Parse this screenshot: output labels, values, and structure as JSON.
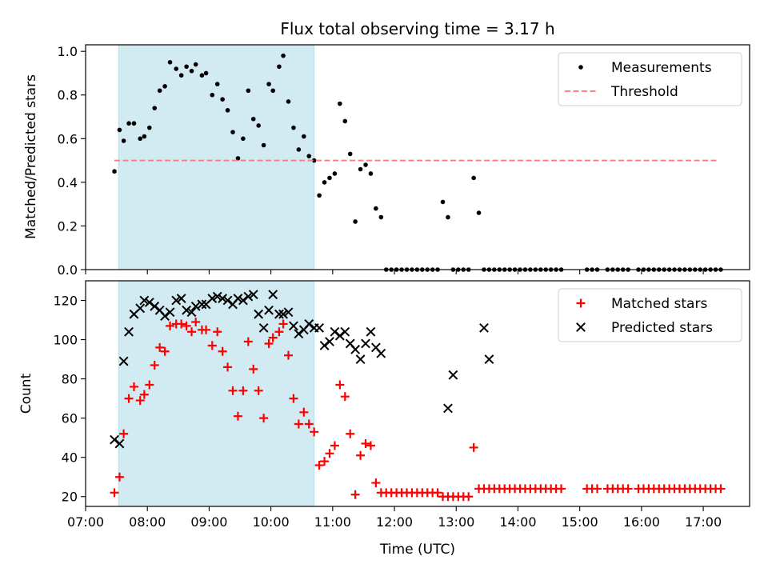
{
  "chart_data": [
    {
      "type": "scatter",
      "title": "Flux total observing time = 3.17 h",
      "xlabel": "",
      "ylabel": "Matched/Predicted stars",
      "xlim": [
        "07:00",
        "17:45"
      ],
      "ylim": [
        0,
        1.03
      ],
      "yticks": [
        0.0,
        0.2,
        0.4,
        0.6,
        0.8,
        1.0
      ],
      "ytick_labels": [
        "0.0",
        "0.2",
        "0.4",
        "0.6",
        "0.8",
        "1.0"
      ],
      "shaded_region": {
        "x_start": "07:32",
        "x_end": "10:42",
        "color": "#add8e6"
      },
      "legend": {
        "position": "top-right",
        "entries": [
          "Measurements",
          "Threshold"
        ]
      },
      "series": [
        {
          "name": "Measurements",
          "marker": "dot",
          "color": "#000000",
          "x": [
            "07:28",
            "07:33",
            "07:37",
            "07:42",
            "07:47",
            "07:53",
            "07:57",
            "08:02",
            "08:07",
            "08:12",
            "08:17",
            "08:22",
            "08:28",
            "08:33",
            "08:38",
            "08:43",
            "08:47",
            "08:53",
            "08:57",
            "09:03",
            "09:08",
            "09:13",
            "09:18",
            "09:23",
            "09:28",
            "09:33",
            "09:38",
            "09:43",
            "09:48",
            "09:53",
            "09:58",
            "10:02",
            "10:08",
            "10:12",
            "10:17",
            "10:22",
            "10:27",
            "10:32",
            "10:37",
            "10:42",
            "10:47",
            "10:52",
            "10:57",
            "11:02",
            "11:07",
            "11:12",
            "11:17",
            "11:22",
            "11:27",
            "11:32",
            "11:37",
            "11:42",
            "11:47",
            "11:52",
            "11:57",
            "12:02",
            "12:07",
            "12:12",
            "12:17",
            "12:22",
            "12:27",
            "12:32",
            "12:37",
            "12:42",
            "12:47",
            "12:52",
            "12:57",
            "13:02",
            "13:07",
            "13:12",
            "13:17",
            "13:22",
            "13:27",
            "13:32",
            "13:37",
            "13:42",
            "13:47",
            "13:52",
            "13:57",
            "14:02",
            "14:07",
            "14:12",
            "14:17",
            "14:22",
            "14:27",
            "14:32",
            "14:37",
            "14:42",
            "15:07",
            "15:12",
            "15:17",
            "15:27",
            "15:32",
            "15:37",
            "15:42",
            "15:47",
            "15:57",
            "16:02",
            "16:07",
            "16:12",
            "16:17",
            "16:22",
            "16:27",
            "16:32",
            "16:37",
            "16:42",
            "16:47",
            "16:52",
            "16:57",
            "17:02",
            "17:07",
            "17:12",
            "17:17"
          ],
          "y": [
            0.45,
            0.64,
            0.59,
            0.67,
            0.67,
            0.6,
            0.61,
            0.65,
            0.74,
            0.82,
            0.84,
            0.95,
            0.92,
            0.89,
            0.93,
            0.91,
            0.94,
            0.89,
            0.9,
            0.8,
            0.85,
            0.78,
            0.73,
            0.63,
            0.51,
            0.6,
            0.82,
            0.69,
            0.66,
            0.57,
            0.85,
            0.82,
            0.93,
            0.98,
            0.77,
            0.65,
            0.55,
            0.61,
            0.52,
            0.5,
            0.34,
            0.4,
            0.42,
            0.44,
            0.76,
            0.68,
            0.53,
            0.22,
            0.46,
            0.48,
            0.44,
            0.28,
            0.24,
            0,
            0,
            0,
            0,
            0,
            0,
            0,
            0,
            0,
            0,
            0,
            0.31,
            0.24,
            0,
            0,
            0,
            0,
            0.42,
            0.26,
            0,
            0,
            0,
            0,
            0,
            0,
            0,
            0,
            0,
            0,
            0,
            0,
            0,
            0,
            0,
            0,
            0,
            0,
            0,
            0,
            0,
            0,
            0,
            0,
            0,
            0,
            0,
            0,
            0,
            0,
            0,
            0,
            0,
            0,
            0,
            0,
            0,
            0,
            0,
            0,
            0
          ]
        },
        {
          "name": "Threshold",
          "style": "dashed",
          "color": "#ff7f7f",
          "x": [
            "07:28",
            "17:15"
          ],
          "y": [
            0.5,
            0.5
          ]
        }
      ]
    },
    {
      "type": "scatter",
      "title": "",
      "xlabel": "Time (UTC)",
      "ylabel": "Count",
      "xlim": [
        "07:00",
        "17:45"
      ],
      "ylim": [
        15,
        130
      ],
      "yticks": [
        20,
        40,
        60,
        80,
        100,
        120
      ],
      "ytick_labels": [
        "20",
        "40",
        "60",
        "80",
        "100",
        "120"
      ],
      "xticks": [
        "07:00",
        "08:00",
        "09:00",
        "10:00",
        "11:00",
        "12:00",
        "13:00",
        "14:00",
        "15:00",
        "16:00",
        "17:00"
      ],
      "shaded_region": {
        "x_start": "07:32",
        "x_end": "10:42",
        "color": "#add8e6"
      },
      "legend": {
        "position": "top-right",
        "entries": [
          "Matched stars",
          "Predicted stars"
        ]
      },
      "series": [
        {
          "name": "Matched stars",
          "marker": "plus",
          "color": "#ff0000",
          "x": [
            "07:28",
            "07:33",
            "07:37",
            "07:42",
            "07:47",
            "07:53",
            "07:57",
            "08:02",
            "08:07",
            "08:12",
            "08:17",
            "08:22",
            "08:28",
            "08:33",
            "08:38",
            "08:43",
            "08:47",
            "08:53",
            "08:57",
            "09:03",
            "09:08",
            "09:13",
            "09:18",
            "09:23",
            "09:28",
            "09:33",
            "09:38",
            "09:43",
            "09:48",
            "09:53",
            "09:58",
            "10:02",
            "10:08",
            "10:12",
            "10:17",
            "10:22",
            "10:27",
            "10:32",
            "10:37",
            "10:42",
            "10:47",
            "10:52",
            "10:57",
            "11:02",
            "11:07",
            "11:12",
            "11:17",
            "11:22",
            "11:27",
            "11:32",
            "11:37",
            "11:42",
            "11:47",
            "11:52",
            "11:57",
            "12:02",
            "12:07",
            "12:12",
            "12:17",
            "12:22",
            "12:27",
            "12:32",
            "12:37",
            "12:42",
            "12:47",
            "12:52",
            "12:57",
            "13:02",
            "13:07",
            "13:12",
            "13:17",
            "13:22",
            "13:27",
            "13:32",
            "13:37",
            "13:42",
            "13:47",
            "13:52",
            "13:57",
            "14:02",
            "14:07",
            "14:12",
            "14:17",
            "14:22",
            "14:27",
            "14:32",
            "14:37",
            "14:42",
            "15:07",
            "15:12",
            "15:17",
            "15:27",
            "15:32",
            "15:37",
            "15:42",
            "15:47",
            "15:57",
            "16:02",
            "16:07",
            "16:12",
            "16:17",
            "16:22",
            "16:27",
            "16:32",
            "16:37",
            "16:42",
            "16:47",
            "16:52",
            "16:57",
            "17:02",
            "17:07",
            "17:12",
            "17:17"
          ],
          "y": [
            22,
            30,
            52,
            70,
            76,
            69,
            72,
            77,
            87,
            96,
            94,
            107,
            108,
            108,
            107,
            104,
            109,
            105,
            105,
            97,
            104,
            94,
            86,
            74,
            61,
            74,
            99,
            85,
            74,
            60,
            98,
            101,
            104,
            108,
            92,
            70,
            57,
            63,
            57,
            53,
            36,
            38,
            42,
            46,
            77,
            71,
            52,
            21,
            41,
            47,
            46,
            27,
            22,
            22,
            22,
            22,
            22,
            22,
            22,
            22,
            22,
            22,
            22,
            22,
            20,
            20,
            20,
            20,
            20,
            20,
            45,
            24,
            24,
            24,
            24,
            24,
            24,
            24,
            24,
            24,
            24,
            24,
            24,
            24,
            24,
            24,
            24,
            24,
            24,
            24,
            24,
            24,
            24,
            24,
            24,
            24,
            24,
            24,
            24,
            24,
            24,
            24,
            24,
            24,
            24,
            24,
            24,
            24,
            24,
            24,
            24,
            24,
            24
          ]
        },
        {
          "name": "Predicted stars",
          "marker": "x",
          "color": "#000000",
          "x": [
            "07:28",
            "07:33",
            "07:37",
            "07:42",
            "07:47",
            "07:53",
            "07:57",
            "08:02",
            "08:07",
            "08:12",
            "08:17",
            "08:22",
            "08:28",
            "08:33",
            "08:38",
            "08:43",
            "08:47",
            "08:53",
            "08:57",
            "09:03",
            "09:08",
            "09:13",
            "09:18",
            "09:23",
            "09:28",
            "09:33",
            "09:38",
            "09:43",
            "09:48",
            "09:53",
            "09:58",
            "10:02",
            "10:08",
            "10:12",
            "10:17",
            "10:22",
            "10:27",
            "10:32",
            "10:37",
            "10:42",
            "10:47",
            "10:52",
            "10:57",
            "11:02",
            "11:07",
            "11:12",
            "11:17",
            "11:22",
            "11:27",
            "11:32",
            "11:37",
            "11:42",
            "11:47",
            "12:52",
            "12:57",
            "13:27",
            "13:32"
          ],
          "y": [
            49,
            47,
            89,
            104,
            113,
            116,
            120,
            119,
            117,
            115,
            112,
            114,
            120,
            121,
            115,
            114,
            117,
            118,
            118,
            121,
            122,
            121,
            120,
            118,
            121,
            120,
            122,
            123,
            113,
            106,
            115,
            123,
            113,
            113,
            114,
            107,
            103,
            105,
            108,
            106,
            106,
            97,
            99,
            104,
            102,
            104,
            98,
            95,
            90,
            98,
            104,
            96,
            93,
            65,
            82,
            106,
            90
          ]
        }
      ]
    }
  ]
}
